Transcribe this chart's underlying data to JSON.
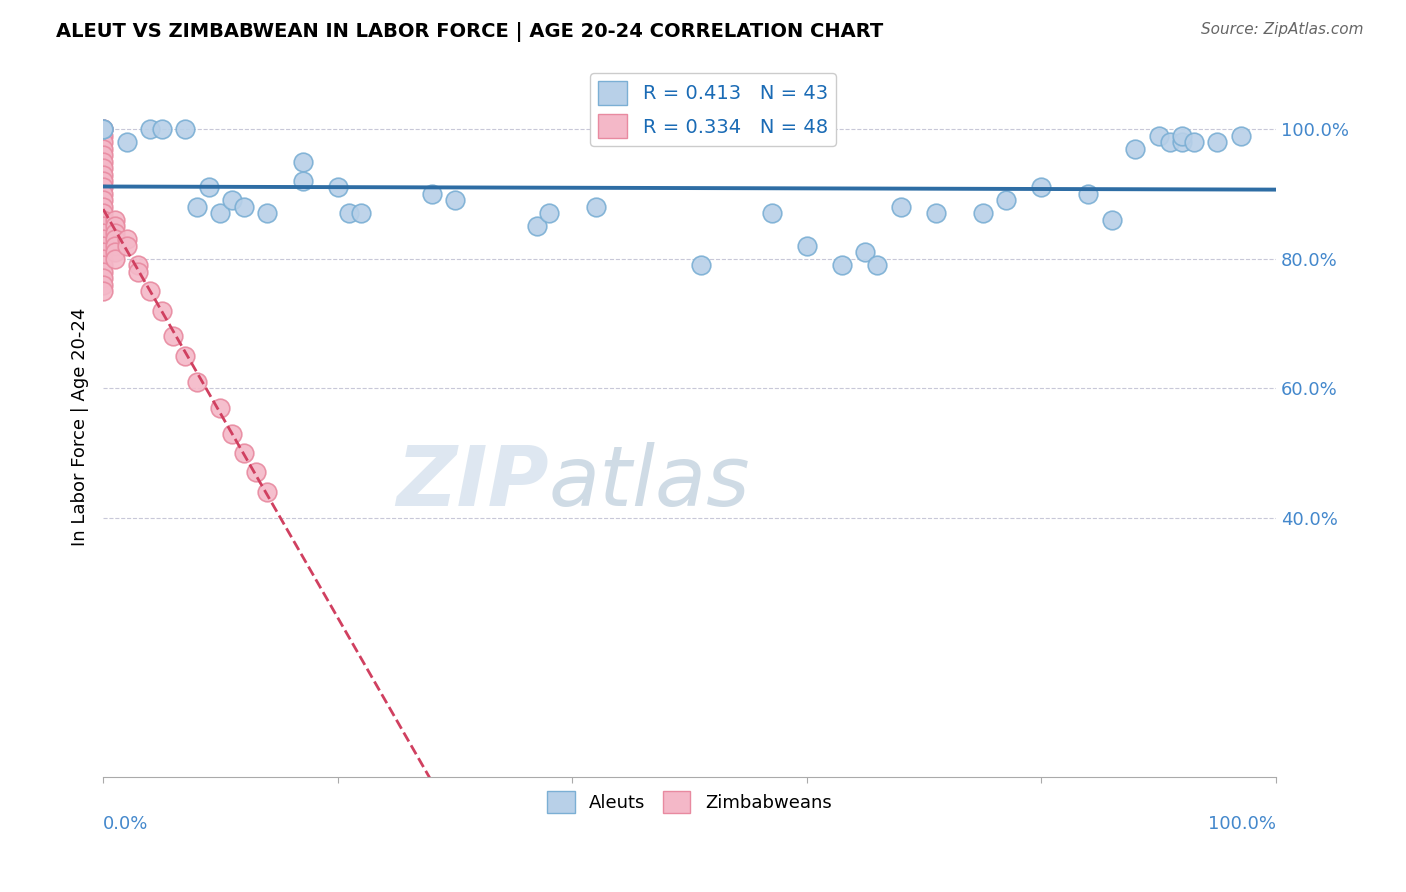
{
  "title": "ALEUT VS ZIMBABWEAN IN LABOR FORCE | AGE 20-24 CORRELATION CHART",
  "source": "Source: ZipAtlas.com",
  "ylabel": "In Labor Force | Age 20-24",
  "watermark": "ZIPatlas",
  "blue_R": 0.413,
  "blue_N": 43,
  "pink_R": 0.334,
  "pink_N": 48,
  "blue_color": "#b8d0e8",
  "blue_edge": "#7bafd4",
  "pink_color": "#f4b8c8",
  "pink_edge": "#e88aa0",
  "trendline_blue": "#2e6da4",
  "trendline_pink": "#d04060",
  "legend_R_color": "#1a6bb5",
  "grid_color": "#c8c8d8",
  "ytick_color": "#4488cc",
  "xtick_color": "#4488cc",
  "blue_x": [
    0.0,
    0.0,
    0.02,
    0.04,
    0.05,
    0.07,
    0.08,
    0.09,
    0.1,
    0.11,
    0.12,
    0.14,
    0.17,
    0.17,
    0.2,
    0.21,
    0.22,
    0.28,
    0.3,
    0.37,
    0.38,
    0.42,
    0.51,
    0.57,
    0.6,
    0.63,
    0.65,
    0.66,
    0.68,
    0.71,
    0.75,
    0.77,
    0.8,
    0.84,
    0.86,
    0.88,
    0.9,
    0.91,
    0.92,
    0.92,
    0.93,
    0.95,
    0.97
  ],
  "blue_y": [
    1.0,
    1.0,
    0.98,
    1.0,
    1.0,
    1.0,
    0.88,
    0.91,
    0.87,
    0.89,
    0.88,
    0.87,
    0.95,
    0.92,
    0.91,
    0.87,
    0.87,
    0.9,
    0.89,
    0.85,
    0.87,
    0.88,
    0.79,
    0.87,
    0.82,
    0.79,
    0.81,
    0.79,
    0.88,
    0.87,
    0.87,
    0.89,
    0.91,
    0.9,
    0.86,
    0.97,
    0.99,
    0.98,
    0.98,
    0.99,
    0.98,
    0.98,
    0.99
  ],
  "pink_x": [
    0.0,
    0.0,
    0.0,
    0.0,
    0.0,
    0.0,
    0.0,
    0.0,
    0.0,
    0.0,
    0.0,
    0.0,
    0.0,
    0.0,
    0.0,
    0.0,
    0.0,
    0.0,
    0.0,
    0.0,
    0.0,
    0.0,
    0.0,
    0.0,
    0.0,
    0.0,
    0.0,
    0.01,
    0.01,
    0.01,
    0.01,
    0.01,
    0.01,
    0.01,
    0.02,
    0.02,
    0.03,
    0.03,
    0.04,
    0.05,
    0.06,
    0.07,
    0.08,
    0.1,
    0.11,
    0.12,
    0.13,
    0.14
  ],
  "pink_y": [
    1.0,
    1.0,
    0.99,
    0.98,
    0.97,
    0.96,
    0.95,
    0.94,
    0.93,
    0.92,
    0.91,
    0.9,
    0.89,
    0.88,
    0.87,
    0.86,
    0.85,
    0.84,
    0.83,
    0.82,
    0.81,
    0.8,
    0.79,
    0.78,
    0.77,
    0.76,
    0.75,
    0.86,
    0.85,
    0.84,
    0.83,
    0.82,
    0.81,
    0.8,
    0.83,
    0.82,
    0.79,
    0.78,
    0.75,
    0.72,
    0.68,
    0.65,
    0.61,
    0.57,
    0.53,
    0.5,
    0.47,
    0.44
  ],
  "xlim": [
    0.0,
    1.0
  ],
  "ylim": [
    0.0,
    1.08
  ],
  "yticks": [
    0.4,
    0.6,
    0.8,
    1.0
  ],
  "ytick_labels": [
    "40.0%",
    "60.0%",
    "80.0%",
    "100.0%"
  ]
}
